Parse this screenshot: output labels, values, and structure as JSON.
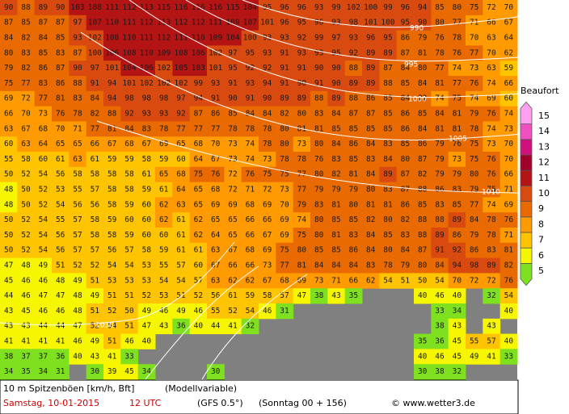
{
  "map": {
    "rows": [
      [
        90,
        88,
        89,
        90,
        103,
        108,
        111,
        112,
        113,
        115,
        116,
        116,
        116,
        115,
        104,
        95,
        96,
        96,
        93,
        99,
        102,
        100,
        99,
        96,
        94,
        85,
        80,
        75,
        72,
        70
      ],
      [
        87,
        85,
        87,
        87,
        97,
        107,
        110,
        111,
        112,
        113,
        112,
        112,
        111,
        109,
        107,
        101,
        96,
        95,
        96,
        93,
        98,
        101,
        100,
        95,
        90,
        80,
        77,
        71,
        66,
        67
      ],
      [
        84,
        82,
        84,
        85,
        93,
        102,
        108,
        110,
        111,
        112,
        111,
        110,
        109,
        104,
        100,
        93,
        93,
        92,
        99,
        97,
        93,
        96,
        95,
        86,
        79,
        76,
        78,
        70,
        63,
        64
      ],
      [
        80,
        83,
        85,
        83,
        87,
        100,
        106,
        108,
        110,
        109,
        108,
        106,
        102,
        97,
        95,
        93,
        91,
        93,
        93,
        95,
        92,
        89,
        89,
        87,
        81,
        78,
        76,
        77,
        70,
        62
      ],
      [
        79,
        82,
        86,
        87,
        90,
        97,
        101,
        104,
        106,
        102,
        105,
        103,
        101,
        95,
        92,
        92,
        91,
        91,
        90,
        90,
        88,
        89,
        87,
        84,
        80,
        77,
        74,
        73,
        63,
        59
      ],
      [
        75,
        77,
        83,
        86,
        88,
        91,
        94,
        101,
        102,
        102,
        102,
        99,
        93,
        91,
        93,
        94,
        91,
        90,
        91,
        90,
        89,
        89,
        88,
        85,
        84,
        81,
        77,
        76,
        74,
        66
      ],
      [
        69,
        72,
        77,
        81,
        83,
        84,
        94,
        98,
        98,
        98,
        97,
        94,
        91,
        90,
        91,
        90,
        89,
        89,
        88,
        89,
        88,
        86,
        85,
        84,
        82,
        74,
        75,
        74,
        69,
        60
      ],
      [
        66,
        70,
        73,
        76,
        78,
        82,
        88,
        92,
        93,
        93,
        92,
        87,
        86,
        85,
        84,
        84,
        82,
        80,
        83,
        84,
        87,
        87,
        85,
        86,
        85,
        84,
        81,
        79,
        76,
        74
      ],
      [
        63,
        67,
        68,
        70,
        71,
        77,
        81,
        84,
        83,
        78,
        77,
        77,
        77,
        78,
        78,
        78,
        80,
        81,
        81,
        85,
        85,
        85,
        85,
        86,
        84,
        81,
        81,
        78,
        74,
        73
      ],
      [
        60,
        63,
        64,
        65,
        65,
        66,
        67,
        68,
        67,
        69,
        65,
        68,
        70,
        73,
        74,
        78,
        80,
        73,
        80,
        84,
        86,
        84,
        83,
        85,
        86,
        79,
        76,
        75,
        73,
        70
      ],
      [
        55,
        58,
        60,
        61,
        63,
        61,
        59,
        59,
        58,
        59,
        60,
        64,
        67,
        73,
        74,
        73,
        78,
        78,
        76,
        83,
        85,
        83,
        84,
        80,
        87,
        79,
        73,
        75,
        76,
        70
      ],
      [
        50,
        52,
        54,
        56,
        58,
        58,
        58,
        58,
        61,
        65,
        68,
        75,
        76,
        72,
        76,
        75,
        75,
        77,
        80,
        82,
        81,
        84,
        89,
        87,
        82,
        79,
        79,
        80,
        76,
        66
      ],
      [
        48,
        50,
        52,
        53,
        55,
        57,
        58,
        58,
        59,
        61,
        64,
        65,
        68,
        72,
        71,
        72,
        73,
        77,
        79,
        79,
        79,
        80,
        83,
        87,
        88,
        86,
        83,
        79,
        75,
        71
      ],
      [
        48,
        50,
        52,
        54,
        56,
        56,
        58,
        59,
        60,
        62,
        63,
        65,
        69,
        69,
        68,
        69,
        70,
        79,
        83,
        81,
        80,
        81,
        81,
        86,
        85,
        83,
        85,
        77,
        74,
        69
      ],
      [
        50,
        52,
        54,
        55,
        57,
        58,
        59,
        60,
        60,
        62,
        61,
        62,
        65,
        65,
        66,
        66,
        69,
        74,
        80,
        85,
        85,
        82,
        80,
        82,
        88,
        88,
        89,
        84,
        78,
        76
      ],
      [
        50,
        52,
        54,
        56,
        57,
        58,
        58,
        59,
        60,
        60,
        61,
        62,
        64,
        65,
        66,
        67,
        69,
        75,
        80,
        81,
        83,
        84,
        85,
        83,
        88,
        89,
        86,
        79,
        78,
        71
      ],
      [
        50,
        52,
        54,
        56,
        57,
        57,
        56,
        57,
        58,
        59,
        61,
        61,
        63,
        67,
        68,
        69,
        75,
        80,
        85,
        85,
        86,
        84,
        80,
        84,
        87,
        91,
        92,
        86,
        83,
        81
      ],
      [
        47,
        48,
        49,
        51,
        52,
        52,
        54,
        54,
        53,
        55,
        57,
        60,
        67,
        66,
        66,
        73,
        77,
        81,
        84,
        84,
        84,
        83,
        78,
        79,
        80,
        84,
        94,
        98,
        89,
        82
      ],
      [
        45,
        46,
        46,
        48,
        49,
        51,
        53,
        53,
        53,
        54,
        54,
        57,
        63,
        62,
        62,
        67,
        68,
        69,
        73,
        71,
        66,
        62,
        54,
        51,
        50,
        54,
        70,
        72,
        72,
        76
      ],
      [
        44,
        46,
        47,
        47,
        48,
        49,
        51,
        51,
        52,
        53,
        51,
        52,
        56,
        61,
        59,
        58,
        57,
        47,
        38,
        43,
        35,
        null,
        null,
        null,
        40,
        46,
        40,
        null,
        32,
        54
      ],
      [
        43,
        45,
        46,
        46,
        48,
        51,
        52,
        50,
        49,
        46,
        49,
        46,
        55,
        52,
        54,
        46,
        31,
        null,
        null,
        null,
        null,
        null,
        null,
        null,
        null,
        33,
        34,
        null,
        null,
        40
      ],
      [
        43,
        43,
        44,
        44,
        47,
        52,
        54,
        51,
        47,
        43,
        36,
        40,
        44,
        41,
        32,
        null,
        null,
        null,
        null,
        null,
        null,
        null,
        null,
        null,
        null,
        38,
        43,
        null,
        43,
        null
      ],
      [
        41,
        41,
        41,
        41,
        46,
        49,
        51,
        46,
        40,
        null,
        null,
        null,
        null,
        null,
        null,
        null,
        null,
        null,
        null,
        null,
        null,
        null,
        null,
        null,
        35,
        36,
        45,
        55,
        57,
        40
      ],
      [
        38,
        37,
        37,
        36,
        40,
        43,
        41,
        33,
        null,
        null,
        null,
        null,
        null,
        null,
        null,
        null,
        null,
        null,
        null,
        null,
        null,
        null,
        null,
        null,
        40,
        46,
        45,
        49,
        41,
        33
      ],
      [
        34,
        35,
        34,
        31,
        null,
        30,
        39,
        45,
        34,
        null,
        null,
        null,
        30,
        null,
        null,
        null,
        null,
        null,
        null,
        null,
        null,
        null,
        null,
        null,
        30,
        38,
        32,
        null,
        null,
        null
      ]
    ]
  },
  "legend": {
    "title": "Beaufort",
    "levels": [
      5,
      6,
      7,
      8,
      9,
      10,
      11,
      12,
      13,
      14,
      15
    ],
    "colors": [
      "#7ee01e",
      "#f6f600",
      "#ffc400",
      "#ff9a00",
      "#e86a00",
      "#d84a10",
      "#b41414",
      "#a0002a",
      "#d0107c",
      "#f050c0",
      "#ffa0f0"
    ]
  },
  "isobar_labels": [
    "990",
    "995",
    "1000",
    "1005",
    "1010",
    "1030"
  ],
  "footer": {
    "title": "10 m Spitzenböen [km/h, Bft]",
    "note": "(Modellvariable)",
    "date": "Samstag, 10-01-2015",
    "time": "12 UTC",
    "model": "(GFS 0.5°)",
    "run": "(Sonntag 00 + 156)",
    "credit": "© www.wetter3.de"
  }
}
